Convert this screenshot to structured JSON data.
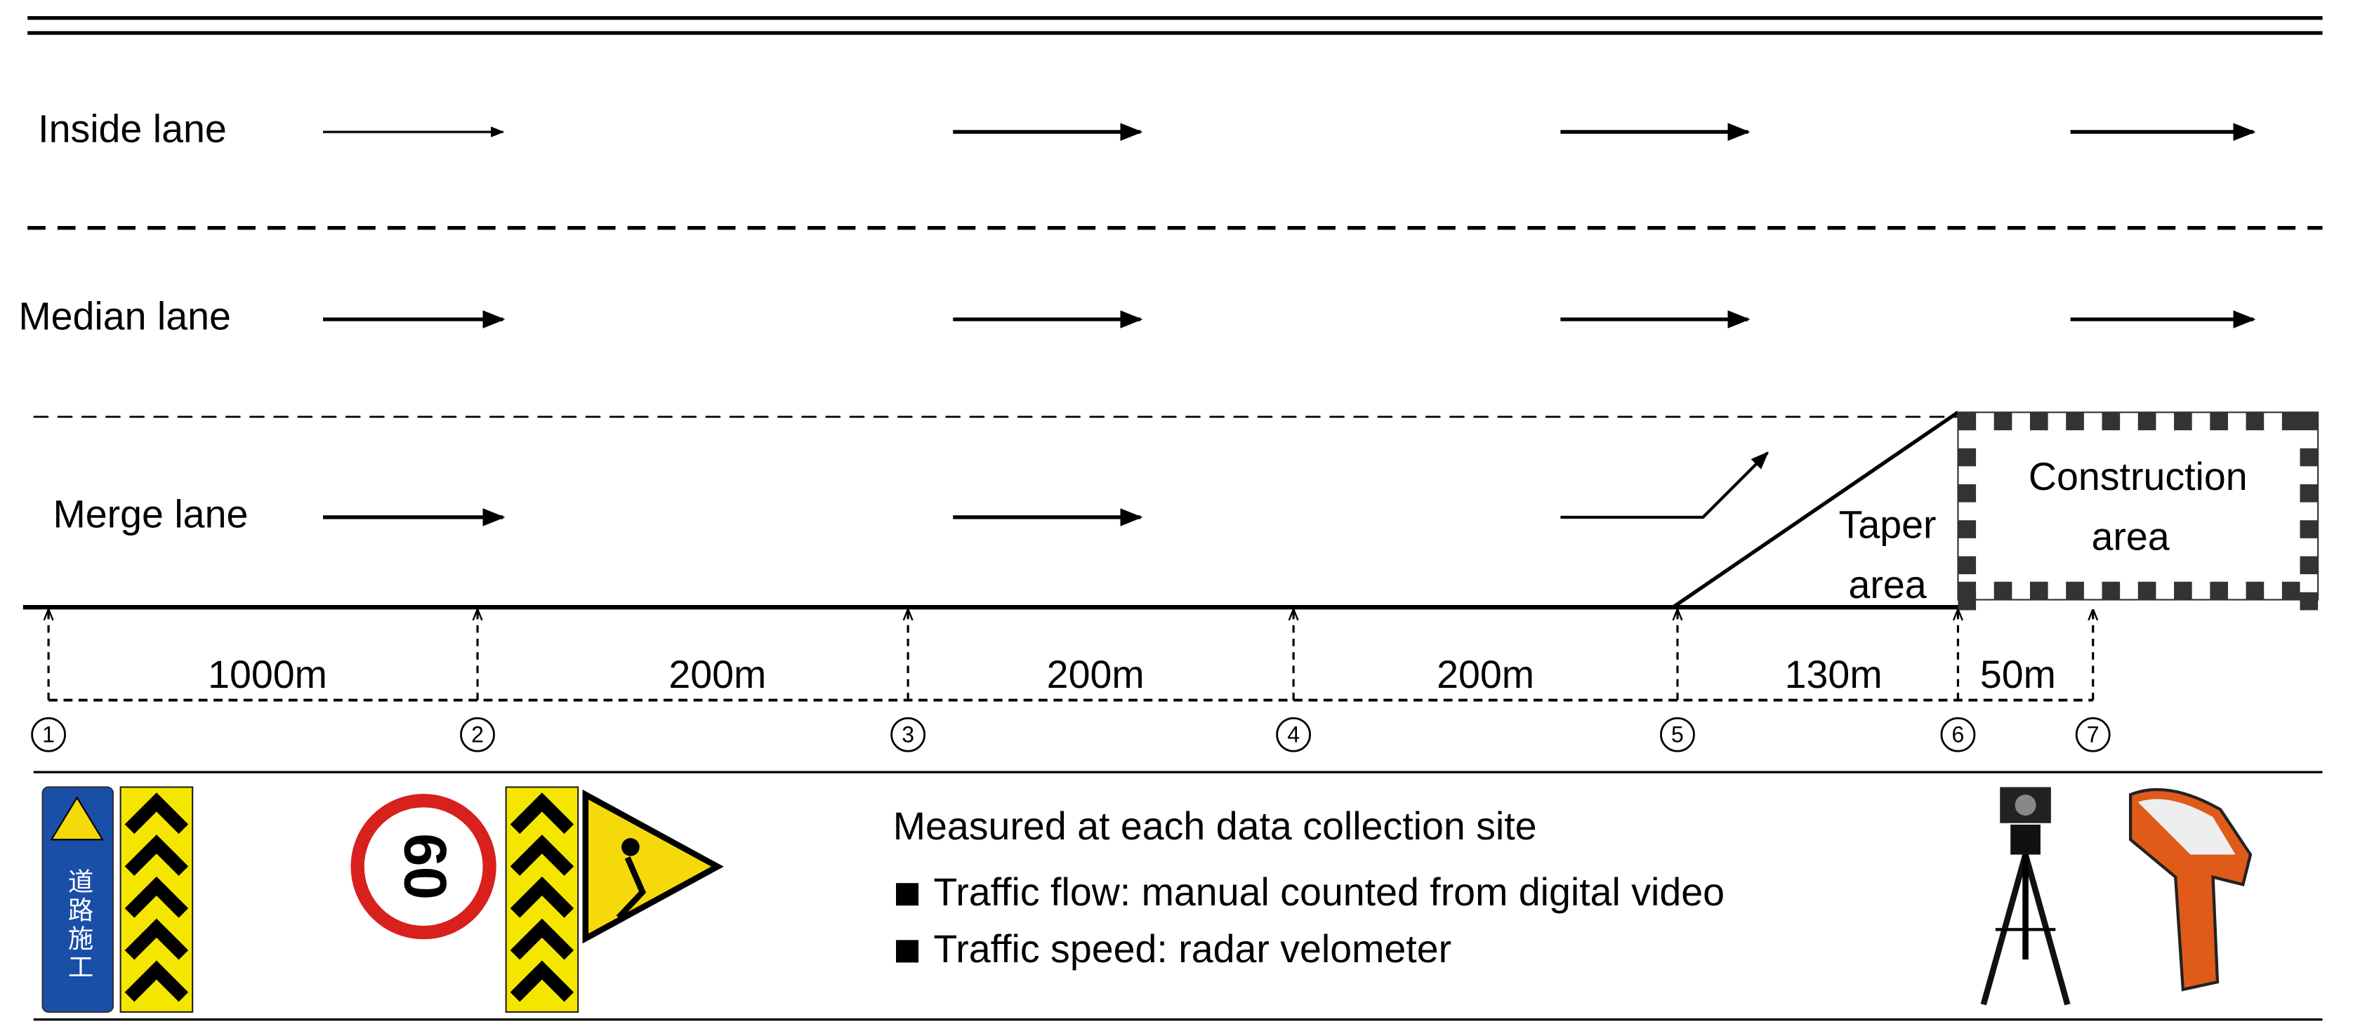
{
  "lanes": [
    {
      "label": "Inside lane"
    },
    {
      "label": "Median lane"
    },
    {
      "label": "Merge lane"
    }
  ],
  "distances": [
    "1000m",
    "200m",
    "200m",
    "200m",
    "130m",
    "50m"
  ],
  "sites": [
    "1",
    "2",
    "3",
    "4",
    "5",
    "6",
    "7"
  ],
  "taper_area": [
    "Taper",
    "area"
  ],
  "construction_area": [
    "Construction",
    "area"
  ],
  "signs": {
    "speed_limit": "60",
    "construction_sign": "道路施工"
  },
  "legend": {
    "title": "Measured at each data collection site",
    "items": [
      "Traffic flow: manual counted from digital video",
      "Traffic speed: radar velometer"
    ]
  }
}
